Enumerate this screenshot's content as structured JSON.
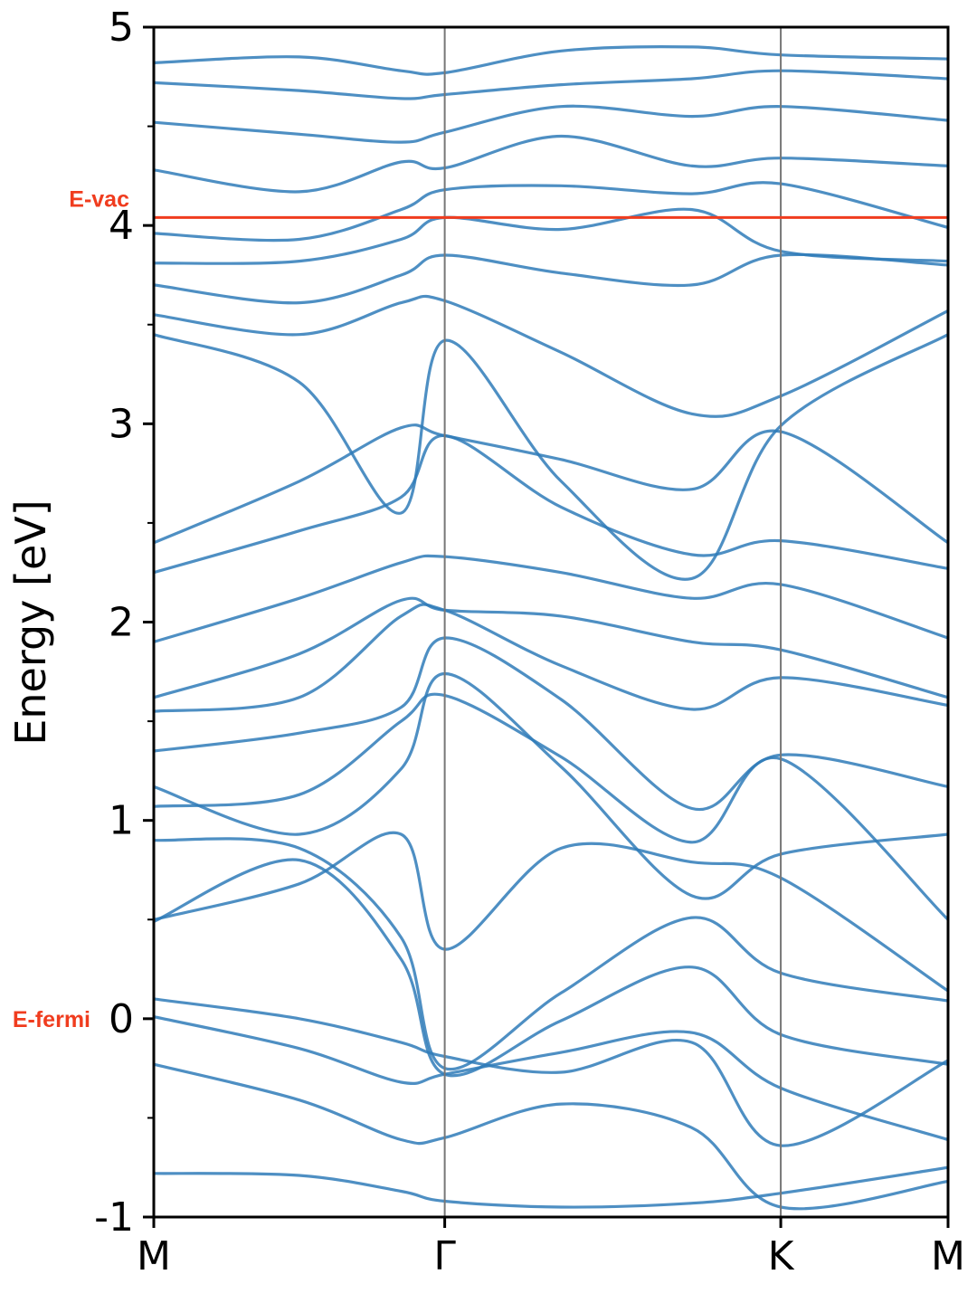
{
  "chart_data": {
    "type": "line",
    "title": "",
    "xlabel": "",
    "ylabel": "Energy [eV]",
    "ylim": [
      -1,
      5
    ],
    "yticks": [
      5,
      4,
      3,
      2,
      1,
      0,
      -1
    ],
    "ytick_labels": [
      "5",
      "4",
      "3",
      "2",
      "1",
      "0",
      "-1"
    ],
    "xticks": [
      {
        "label": "M",
        "x": 0
      },
      {
        "label": "Γ",
        "x": 1
      },
      {
        "label": "K",
        "x": 2.155
      },
      {
        "label": "M",
        "x": 2.73
      }
    ],
    "xlim": [
      0,
      2.73
    ],
    "grid": false,
    "line_color": "#2f7bb8",
    "reference_lines": [
      {
        "label": "E-vac",
        "y": 4.04,
        "color": "#f03c1e"
      },
      {
        "label": "E-fermi",
        "y": 0,
        "color": "#f03c1e"
      }
    ],
    "bands": [
      [
        -0.78,
        -0.79,
        -0.87,
        -0.92,
        -0.95,
        -0.93,
        -0.88,
        -0.75
      ],
      [
        -0.23,
        -0.41,
        -0.61,
        -0.6,
        -0.43,
        -0.55,
        -0.95,
        -0.82
      ],
      [
        0.01,
        -0.15,
        -0.32,
        -0.28,
        -0.17,
        -0.07,
        -0.35,
        -0.61
      ],
      [
        0.1,
        0.0,
        -0.12,
        -0.19,
        -0.27,
        -0.12,
        -0.64,
        -0.21
      ],
      [
        0.49,
        0.8,
        0.3,
        -0.28,
        -0.01,
        0.26,
        -0.08,
        -0.23
      ],
      [
        0.5,
        0.68,
        0.93,
        0.35,
        0.86,
        0.79,
        0.71,
        0.14
      ],
      [
        0.9,
        0.86,
        0.41,
        -0.25,
        0.13,
        0.51,
        0.23,
        0.09
      ],
      [
        1.07,
        1.13,
        1.5,
        1.63,
        1.32,
        0.89,
        1.31,
        0.5
      ],
      [
        1.17,
        0.93,
        1.26,
        1.74,
        1.27,
        0.62,
        0.83,
        0.93
      ],
      [
        1.35,
        1.44,
        1.57,
        1.92,
        1.61,
        1.06,
        1.33,
        1.17
      ],
      [
        1.55,
        1.62,
        2.03,
        2.06,
        1.78,
        1.56,
        1.72,
        1.58
      ],
      [
        1.62,
        1.84,
        2.11,
        2.06,
        2.03,
        1.9,
        1.86,
        1.62
      ],
      [
        1.9,
        2.12,
        2.3,
        2.33,
        2.25,
        2.12,
        2.19,
        1.92
      ],
      [
        2.25,
        2.46,
        2.63,
        2.94,
        2.58,
        2.34,
        2.41,
        2.27
      ],
      [
        2.4,
        2.71,
        2.98,
        2.94,
        2.82,
        2.67,
        2.96,
        2.4
      ],
      [
        3.45,
        3.21,
        2.55,
        3.42,
        2.71,
        2.22,
        2.99,
        3.45
      ],
      [
        3.55,
        3.45,
        3.61,
        3.62,
        3.36,
        3.05,
        3.14,
        3.57
      ],
      [
        3.7,
        3.61,
        3.75,
        3.85,
        3.76,
        3.7,
        3.85,
        3.8
      ],
      [
        3.81,
        3.82,
        3.93,
        4.04,
        3.98,
        4.08,
        3.87,
        3.82
      ],
      [
        3.96,
        3.93,
        4.08,
        4.18,
        4.2,
        4.16,
        4.21,
        3.99
      ],
      [
        4.28,
        4.17,
        4.32,
        4.29,
        4.45,
        4.3,
        4.34,
        4.3
      ],
      [
        4.52,
        4.46,
        4.42,
        4.47,
        4.6,
        4.55,
        4.6,
        4.53
      ],
      [
        4.72,
        4.68,
        4.64,
        4.66,
        4.71,
        4.74,
        4.78,
        4.74
      ],
      [
        4.82,
        4.85,
        4.78,
        4.77,
        4.88,
        4.9,
        4.86,
        4.84
      ]
    ]
  }
}
